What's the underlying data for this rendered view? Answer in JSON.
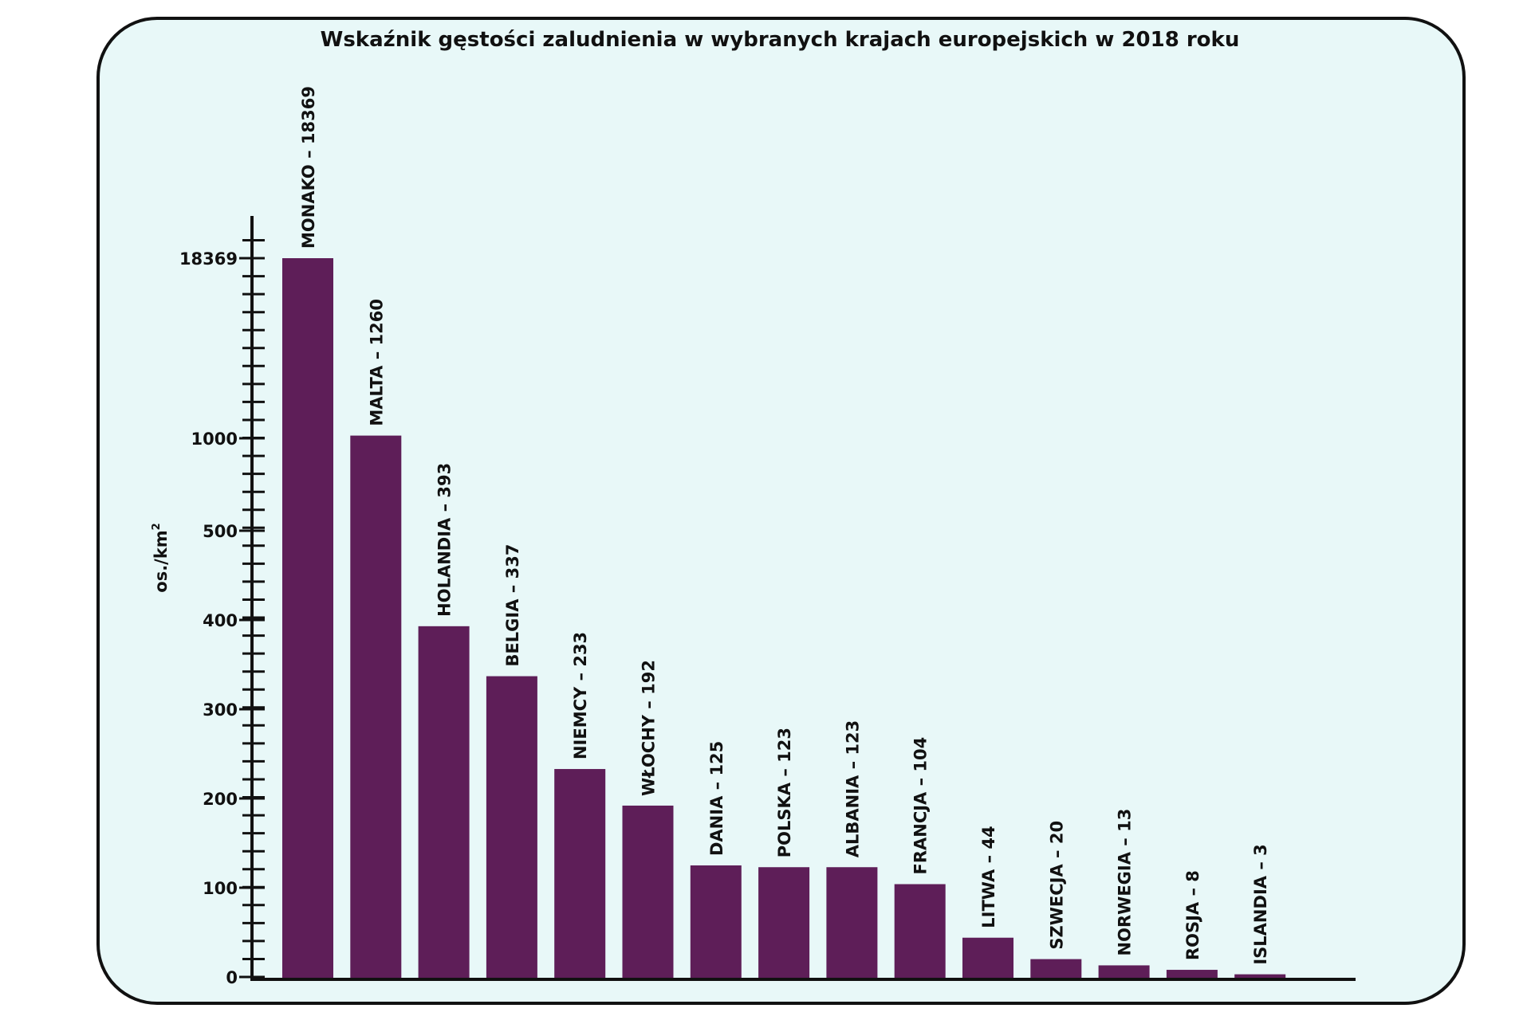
{
  "chart_data": {
    "type": "bar",
    "title": "Wskaźnik gęstości zaludnienia w wybranych krajach europejskich w 2018 roku",
    "xlabel": "",
    "ylabel": "os./km",
    "ylabel_superscript": "2",
    "y_scale": "piecewise (broken axis)",
    "y_ticks": [
      0,
      100,
      200,
      300,
      400,
      500,
      1000,
      18369
    ],
    "ylim": [
      0,
      18369
    ],
    "grid": false,
    "bar_color": "#5e1e58",
    "categories": [
      "MONAKO",
      "MALTA",
      "HOLANDIA",
      "BELGIA",
      "NIEMCY",
      "WŁOCHY",
      "DANIA",
      "POLSKA",
      "ALBANIA",
      "FRANCJA",
      "LITWA",
      "SZWECJA",
      "NORWEGIA",
      "ROSJA",
      "ISLANDIA"
    ],
    "values": [
      18369,
      1260,
      393,
      337,
      233,
      192,
      125,
      123,
      123,
      104,
      44,
      20,
      13,
      8,
      3
    ],
    "data_labels": [
      "MONAKO – 18369",
      "MALTA – 1260",
      "HOLANDIA – 393",
      "BELGIA – 337",
      "NIEMCY – 233",
      "WŁOCHY – 192",
      "DANIA – 125",
      "POLSKA – 123",
      "ALBANIA – 123",
      "FRANCJA – 104",
      "LITWA – 44",
      "SZWECJA – 20",
      "NORWEGIA – 13",
      "ROSJA – 8",
      "ISLANDIA – 3"
    ]
  }
}
